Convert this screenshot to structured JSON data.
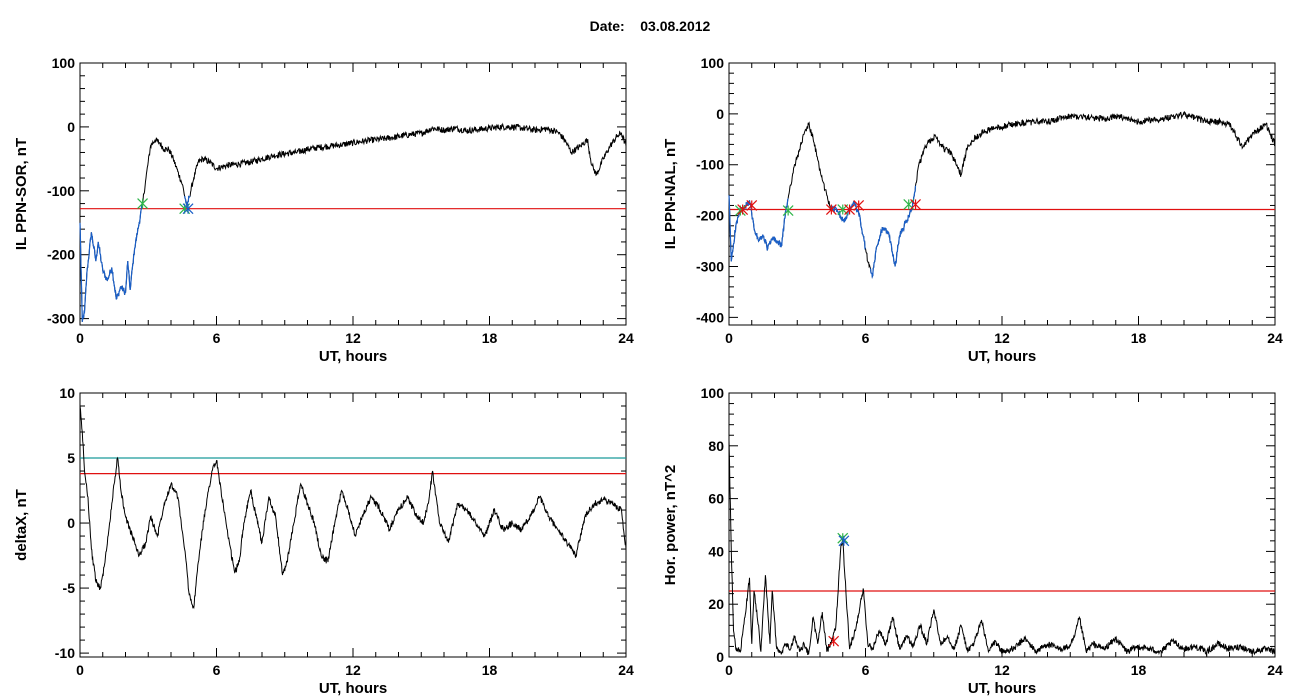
{
  "header": {
    "date_label": "Date:",
    "date_value": "03.08.2012"
  },
  "colors": {
    "trace": "#000000",
    "selected": "#1a5fc8",
    "threshold": "#e01010",
    "threshold2": "#1a9a9a",
    "marker_green": "#2fb54a",
    "marker_red": "#e01010"
  },
  "chart_data": [
    {
      "type": "line",
      "ylabel": "IL PPN-SOR, nT",
      "xlabel": "UT, hours",
      "xlim": [
        0,
        24
      ],
      "ylim": [
        -310,
        100
      ],
      "xticks": [
        "0",
        "6",
        "12",
        "18",
        "24"
      ],
      "yticks": [
        "-300",
        "-200",
        "-100",
        "0",
        "100"
      ],
      "ytick_values": [
        -300,
        -200,
        -100,
        0,
        100
      ],
      "thresholds": [
        {
          "value": -128,
          "color": "red"
        }
      ],
      "x": [
        0,
        0.1,
        0.2,
        0.3,
        0.5,
        0.7,
        0.8,
        1.0,
        1.2,
        1.4,
        1.6,
        1.8,
        2.0,
        2.1,
        2.2,
        2.4,
        2.6,
        2.75,
        2.9,
        3.1,
        3.3,
        3.5,
        3.7,
        3.9,
        4.1,
        4.3,
        4.5,
        4.7,
        4.8,
        5.0,
        5.2,
        5.4,
        5.7,
        6.0,
        6.5,
        7.0,
        7.5,
        8.0,
        8.5,
        9.0,
        9.5,
        10.0,
        10.5,
        11.0,
        11.5,
        12.0,
        12.5,
        13.0,
        13.5,
        14.0,
        14.5,
        15.0,
        15.5,
        16.0,
        16.5,
        17.0,
        17.5,
        18.0,
        18.5,
        19.0,
        19.5,
        20.0,
        20.5,
        21.0,
        21.3,
        21.6,
        22.0,
        22.3,
        22.5,
        22.7,
        23.0,
        23.3,
        23.6,
        23.8,
        24.0
      ],
      "y": [
        -150,
        -305,
        -290,
        -230,
        -165,
        -210,
        -180,
        -225,
        -240,
        -220,
        -270,
        -250,
        -260,
        -210,
        -255,
        -190,
        -150,
        -120,
        -80,
        -30,
        -20,
        -25,
        -35,
        -35,
        -50,
        -70,
        -90,
        -125,
        -110,
        -80,
        -55,
        -50,
        -55,
        -65,
        -60,
        -58,
        -55,
        -50,
        -45,
        -42,
        -40,
        -35,
        -32,
        -30,
        -28,
        -25,
        -22,
        -20,
        -18,
        -15,
        -12,
        -10,
        -2,
        -5,
        -2,
        -6,
        -4,
        -2,
        0,
        0,
        -2,
        -5,
        -3,
        -8,
        -20,
        -40,
        -30,
        -20,
        -60,
        -75,
        -50,
        -30,
        -15,
        -10,
        -30
      ],
      "selected_segments": [
        [
          0,
          2.75
        ],
        [
          4.6,
          4.85
        ]
      ],
      "markers": [
        {
          "x": 2.75,
          "y": -120,
          "color": "green"
        },
        {
          "x": 4.6,
          "y": -128,
          "color": "green"
        },
        {
          "x": 4.75,
          "y": -128,
          "color": "blue"
        }
      ]
    },
    {
      "type": "line",
      "ylabel": "IL PPN-NAL, nT",
      "xlabel": "UT, hours",
      "xlim": [
        0,
        24
      ],
      "ylim": [
        -415,
        100
      ],
      "xticks": [
        "0",
        "6",
        "12",
        "18",
        "24"
      ],
      "yticks": [
        "-400",
        "-300",
        "-200",
        "-100",
        "0",
        "100"
      ],
      "ytick_values": [
        -400,
        -300,
        -200,
        -100,
        0,
        100
      ],
      "thresholds": [
        {
          "value": -188,
          "color": "red"
        }
      ],
      "x": [
        0,
        0.1,
        0.3,
        0.5,
        0.7,
        0.9,
        1.1,
        1.3,
        1.5,
        1.7,
        1.9,
        2.1,
        2.3,
        2.5,
        2.7,
        2.9,
        3.1,
        3.3,
        3.5,
        3.7,
        3.9,
        4.1,
        4.3,
        4.5,
        4.7,
        4.9,
        5.1,
        5.3,
        5.5,
        5.7,
        5.9,
        6.1,
        6.3,
        6.5,
        6.7,
        6.9,
        7.1,
        7.3,
        7.5,
        7.7,
        7.9,
        8.1,
        8.3,
        8.5,
        8.7,
        8.9,
        9.1,
        9.3,
        9.5,
        9.7,
        9.9,
        10.2,
        10.5,
        11,
        11.5,
        12,
        12.5,
        13,
        13.5,
        14,
        14.5,
        15,
        15.5,
        16,
        16.5,
        17,
        17.5,
        18,
        18.5,
        19,
        19.5,
        20,
        20.5,
        21,
        21.5,
        22,
        22.3,
        22.6,
        23,
        23.3,
        23.6,
        24
      ],
      "y": [
        -160,
        -290,
        -220,
        -190,
        -185,
        -170,
        -225,
        -250,
        -240,
        -265,
        -245,
        -250,
        -260,
        -190,
        -140,
        -100,
        -70,
        -40,
        -20,
        -50,
        -90,
        -130,
        -160,
        -190,
        -185,
        -200,
        -210,
        -190,
        -175,
        -195,
        -240,
        -290,
        -320,
        -260,
        -230,
        -225,
        -250,
        -300,
        -240,
        -220,
        -200,
        -175,
        -110,
        -80,
        -60,
        -50,
        -45,
        -60,
        -70,
        -75,
        -90,
        -120,
        -60,
        -40,
        -30,
        -25,
        -20,
        -18,
        -15,
        -15,
        -10,
        -5,
        -5,
        -8,
        -10,
        -5,
        -10,
        -15,
        -12,
        -10,
        -5,
        -2,
        -8,
        -15,
        -15,
        -20,
        -45,
        -65,
        -40,
        -30,
        -20,
        -60
      ],
      "selected_segments": [
        [
          0,
          2.6
        ],
        [
          4.5,
          6.0
        ],
        [
          6.2,
          8.2
        ]
      ],
      "markers": [
        {
          "x": 0.5,
          "y": -190,
          "color": "green"
        },
        {
          "x": 0.6,
          "y": -188,
          "color": "red"
        },
        {
          "x": 1.0,
          "y": -180,
          "color": "red"
        },
        {
          "x": 2.6,
          "y": -190,
          "color": "green"
        },
        {
          "x": 4.5,
          "y": -188,
          "color": "red"
        },
        {
          "x": 5.0,
          "y": -188,
          "color": "green"
        },
        {
          "x": 5.3,
          "y": -188,
          "color": "red"
        },
        {
          "x": 5.7,
          "y": -180,
          "color": "red"
        },
        {
          "x": 7.9,
          "y": -178,
          "color": "green"
        },
        {
          "x": 8.2,
          "y": -178,
          "color": "red"
        }
      ]
    },
    {
      "type": "line",
      "ylabel": "deltaX, nT",
      "xlabel": "UT, hours",
      "xlim": [
        0,
        24
      ],
      "ylim": [
        -10.3,
        10
      ],
      "xticks": [
        "0",
        "6",
        "12",
        "18",
        "24"
      ],
      "yticks": [
        "-10",
        "-5",
        "0",
        "5",
        "10"
      ],
      "ytick_values": [
        -10,
        -5,
        0,
        5,
        10
      ],
      "thresholds": [
        {
          "value": 5,
          "color": "teal"
        },
        {
          "value": 3.8,
          "color": "red"
        }
      ],
      "x": [
        0,
        0.1,
        0.2,
        0.35,
        0.5,
        0.7,
        0.9,
        1.1,
        1.3,
        1.5,
        1.65,
        1.8,
        2.0,
        2.3,
        2.6,
        2.9,
        3.1,
        3.4,
        3.7,
        4.0,
        4.3,
        4.6,
        4.8,
        5.0,
        5.2,
        5.5,
        5.8,
        6.0,
        6.2,
        6.5,
        6.8,
        7.0,
        7.2,
        7.5,
        7.8,
        8.0,
        8.3,
        8.6,
        8.9,
        9.1,
        9.4,
        9.7,
        10.0,
        10.3,
        10.6,
        10.9,
        11.2,
        11.5,
        11.8,
        12.1,
        12.4,
        12.8,
        13.2,
        13.6,
        14.0,
        14.4,
        14.8,
        15.1,
        15.3,
        15.5,
        15.8,
        16.2,
        16.6,
        17.0,
        17.4,
        17.8,
        18.2,
        18.6,
        19.0,
        19.4,
        19.8,
        20.2,
        20.6,
        21.0,
        21.4,
        21.8,
        22.2,
        22.6,
        23.0,
        23.4,
        23.8,
        24.0
      ],
      "y": [
        9,
        7,
        4,
        2,
        -2,
        -4.5,
        -5,
        -3,
        0,
        3,
        5,
        2.5,
        0.5,
        -1,
        -2.5,
        -1.5,
        0.5,
        -1,
        1.5,
        3,
        2,
        -2,
        -5.5,
        -6.5,
        -3,
        1,
        4,
        4.8,
        2.5,
        -1,
        -3.8,
        -3,
        0,
        2.5,
        0,
        -1.5,
        2,
        0.5,
        -4,
        -3,
        0,
        3,
        1.5,
        0,
        -2.5,
        -3,
        0,
        2.5,
        1,
        -1,
        0.5,
        2,
        1,
        -0.5,
        1,
        2,
        0.5,
        0,
        1.5,
        4,
        0,
        -1.5,
        1.5,
        1,
        0,
        -1,
        1,
        -0.5,
        0,
        -0.5,
        0.5,
        2,
        0.5,
        -0.5,
        -1.5,
        -2.5,
        0.5,
        1.5,
        1.8,
        1.5,
        1,
        -2
      ],
      "selected_segments": [],
      "markers": []
    },
    {
      "type": "line",
      "ylabel": "Hor. power, nT^2",
      "xlabel": "UT, hours",
      "xlim": [
        0,
        24
      ],
      "ylim": [
        0,
        100
      ],
      "xticks": [
        "0",
        "6",
        "12",
        "18",
        "24"
      ],
      "yticks": [
        "0",
        "20",
        "40",
        "60",
        "80",
        "100"
      ],
      "ytick_values": [
        0,
        20,
        40,
        60,
        80,
        100
      ],
      "thresholds": [
        {
          "value": 25,
          "color": "red"
        }
      ],
      "x": [
        0,
        0.1,
        0.2,
        0.3,
        0.5,
        0.7,
        0.9,
        1.0,
        1.1,
        1.3,
        1.4,
        1.6,
        1.8,
        1.9,
        2.1,
        2.3,
        2.5,
        2.7,
        2.9,
        3.1,
        3.3,
        3.5,
        3.7,
        3.9,
        4.1,
        4.3,
        4.5,
        4.7,
        4.9,
        5.0,
        5.1,
        5.3,
        5.6,
        5.9,
        6.1,
        6.3,
        6.6,
        6.9,
        7.2,
        7.5,
        7.8,
        8.1,
        8.4,
        8.7,
        9.0,
        9.3,
        9.6,
        9.9,
        10.2,
        10.5,
        10.8,
        11.1,
        11.4,
        11.7,
        12.0,
        12.5,
        13.0,
        13.5,
        14.0,
        14.5,
        15.0,
        15.2,
        15.4,
        15.7,
        16.0,
        16.5,
        17.0,
        17.5,
        18.0,
        18.5,
        19.0,
        19.5,
        20.0,
        20.5,
        21.0,
        21.5,
        22.0,
        22.5,
        23.0,
        23.5,
        24.0
      ],
      "y": [
        82,
        40,
        10,
        3,
        2,
        15,
        30,
        5,
        25,
        12,
        2,
        31,
        5,
        25,
        3,
        1,
        5,
        3,
        8,
        2,
        5,
        1,
        15,
        5,
        17,
        2,
        6,
        12,
        40,
        45,
        30,
        3,
        12,
        26,
        5,
        3,
        10,
        5,
        15,
        3,
        8,
        4,
        12,
        5,
        18,
        5,
        8,
        3,
        12,
        2,
        6,
        14,
        2,
        6,
        2,
        3,
        7,
        2,
        5,
        3,
        4,
        8,
        15,
        2,
        5,
        3,
        7,
        2,
        4,
        3,
        2,
        6,
        3,
        4,
        2,
        5,
        3,
        4,
        2,
        3,
        2
      ],
      "selected_segments": [],
      "markers": [
        {
          "x": 4.6,
          "y": 6,
          "color": "red"
        },
        {
          "x": 5.0,
          "y": 45,
          "color": "green"
        },
        {
          "x": 5.05,
          "y": 44,
          "color": "blue"
        }
      ]
    }
  ]
}
